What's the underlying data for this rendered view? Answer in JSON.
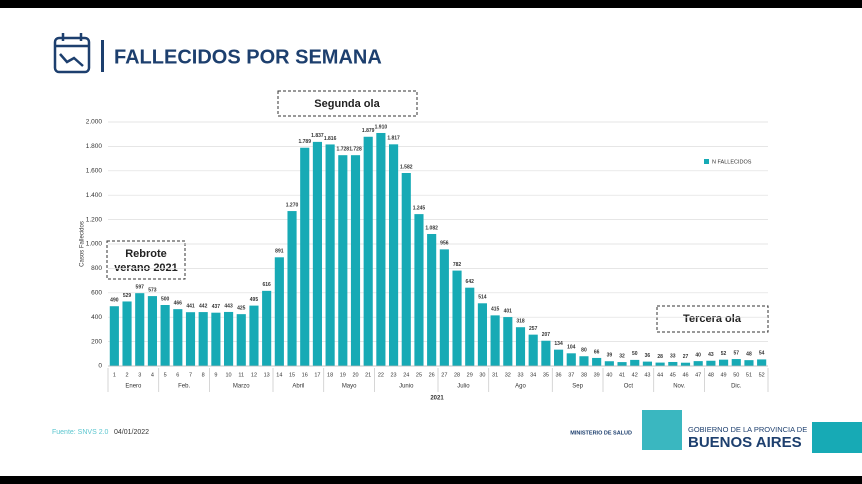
{
  "chart_data": {
    "type": "bar",
    "title": "FALLECIDOS POR SEMANA",
    "y_label": "Casos Fallecidos",
    "x_label": "2021",
    "categories": [
      "1",
      "2",
      "3",
      "4",
      "5",
      "6",
      "7",
      "8",
      "9",
      "10",
      "11",
      "12",
      "13",
      "14",
      "15",
      "16",
      "17",
      "18",
      "19",
      "20",
      "21",
      "22",
      "23",
      "24",
      "25",
      "26",
      "27",
      "28",
      "29",
      "30",
      "31",
      "32",
      "33",
      "34",
      "35",
      "36",
      "37",
      "38",
      "39",
      "40",
      "41",
      "42",
      "43",
      "44",
      "45",
      "46",
      "47",
      "48",
      "49",
      "50",
      "51",
      "52"
    ],
    "months": [
      "Enero",
      "Feb.",
      "Marzo",
      "Abril",
      "Mayo",
      "Junio",
      "Julio",
      "Ago",
      "Sep",
      "Oct",
      "Nov.",
      "Dic."
    ],
    "series": [
      {
        "name": "N FALLECIDOS",
        "color": "#17aab5",
        "values": [
          490,
          529,
          597,
          573,
          500,
          466,
          441,
          442,
          437,
          443,
          425,
          495,
          616,
          891,
          1270,
          1789,
          1837,
          1816,
          1728,
          1728,
          1879,
          1910,
          1817,
          1582,
          1245,
          1082,
          956,
          782,
          642,
          514,
          415,
          401,
          318,
          257,
          207,
          134,
          104,
          80,
          66,
          39,
          32,
          50,
          36,
          28,
          33,
          27,
          40,
          43,
          52,
          57,
          48,
          54
        ],
        "value_labels": [
          "490",
          "529",
          "597",
          "573",
          "500",
          "466",
          "441",
          "442",
          "437",
          "443",
          "425",
          "495",
          "616",
          "891",
          "1.270",
          "1.789",
          "1.837",
          "1.816",
          "1.728",
          "1.728",
          "1.879",
          "1.910",
          "1.817",
          "1.582",
          "1.245",
          "1.082",
          "956",
          "782",
          "642",
          "514",
          "415",
          "401",
          "318",
          "257",
          "207",
          "134",
          "104",
          "80",
          "66",
          "39",
          "32",
          "50",
          "36",
          "28",
          "33",
          "27",
          "40",
          "43",
          "52",
          "57",
          "48",
          "54"
        ]
      }
    ],
    "ylim": [
      0,
      2000
    ],
    "yticks": [
      0,
      200,
      400,
      600,
      800,
      {
        "value": 1000,
        "label": "1.000"
      },
      {
        "value": 1200,
        "label": "1.200"
      },
      {
        "value": 1400,
        "label": "1.400"
      },
      {
        "value": 1600,
        "label": "1.600"
      },
      {
        "value": 1800,
        "label": "1.800"
      },
      {
        "value": 2000,
        "label": "2.000"
      }
    ],
    "grid": true,
    "legend": "upper right",
    "annotations": [
      {
        "text": "Segunda ola"
      },
      {
        "text": "Rebrote",
        "text2": "verano 2021"
      },
      {
        "text": "Tercera ola"
      }
    ]
  },
  "footer": {
    "source": "Fuente: SNVS 2.0",
    "date": "04/01/2022",
    "ministry": "MINISTERIO DE SALUD",
    "gov": "GOBIERNO DE LA PROVINCIA DE",
    "province": "BUENOS AIRES"
  }
}
